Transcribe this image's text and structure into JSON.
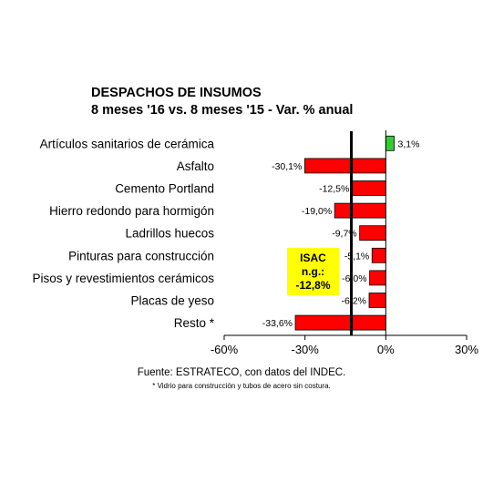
{
  "chart_data": {
    "type": "bar",
    "orientation": "horizontal",
    "title": "DESPACHOS DE INSUMOS",
    "subtitle": "8 meses '16 vs. 8 meses '15 - Var. % anual",
    "categories": [
      "Artículos sanitarios de cerámica",
      "Asfalto",
      "Cemento Portland",
      "Hierro redondo para hormigón",
      "Ladrillos huecos",
      "Pinturas para construcción",
      "Pisos y revestimientos cerámicos",
      "Placas de yeso",
      "Resto *"
    ],
    "values": [
      3.1,
      -30.1,
      -12.5,
      -19.0,
      -9.7,
      -5.1,
      -6.0,
      -6.2,
      -33.6
    ],
    "value_labels": [
      "3,1%",
      "-30,1%",
      "-12,5%",
      "-19,0%",
      "-9,7%",
      "-5,1%",
      "-6,0%",
      "-6,2%",
      "-33,6%"
    ],
    "xlim": [
      -60,
      30
    ],
    "xticks": [
      -60,
      -30,
      0,
      30
    ],
    "xtick_labels": [
      "-60%",
      "-30%",
      "0%",
      "30%"
    ],
    "reference_line": {
      "value": -12.8
    },
    "colors": {
      "positive": "#33cc33",
      "negative": "#ff0000",
      "reference": "#000000",
      "annotation_bg": "#ffff00"
    },
    "grid": false,
    "legend": "none",
    "annotation": {
      "line1": "ISAC",
      "line2": "n.g.:",
      "line3": "-12,8%"
    }
  },
  "source": "Fuente: ESTRATECO, con datos del INDEC.",
  "footnote": "* Vidrio para construcción y tubos de acero sin costura."
}
